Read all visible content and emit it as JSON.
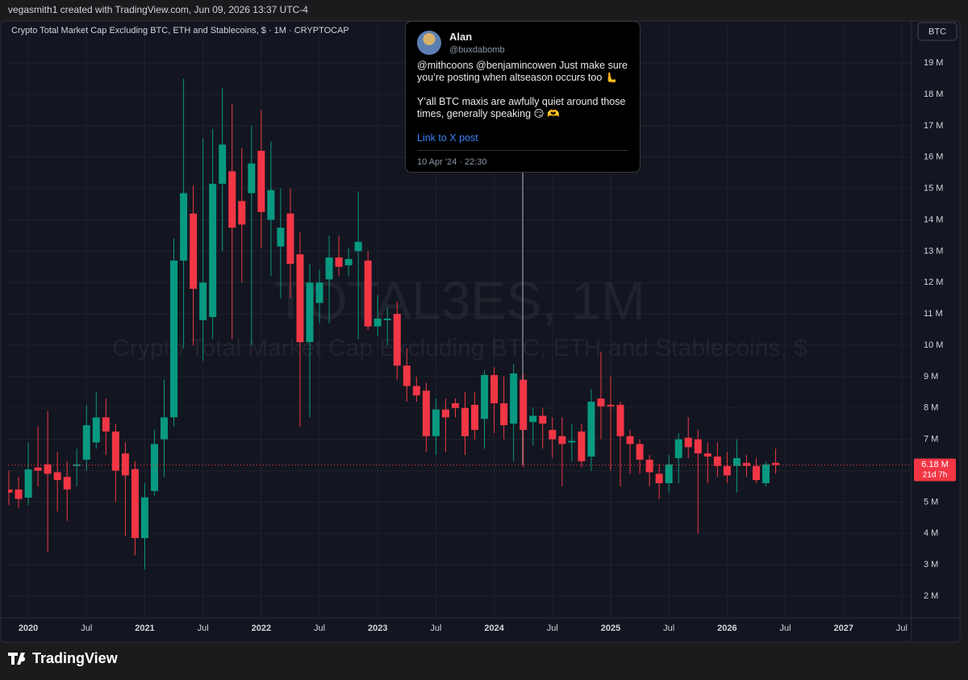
{
  "header": {
    "caption": "vegasmith1 created with TradingView.com, Jun 09, 2026 13:37 UTC-4"
  },
  "chart_data": {
    "type": "candlestick",
    "title": "Crypto Total Market Cap Excluding BTC, ETH and Stablecoins, $ · 1M · CRYPTOCAP",
    "watermark": {
      "symbol": "TOTAL3ES, 1M",
      "description": "Crypto Total Market Cap Excluding BTC, ETH and Stablecoins, $"
    },
    "currency_button": "BTC",
    "up_color": "#089981",
    "down_color": "#f23645",
    "x": [
      "2019-11",
      "2019-12",
      "2020-01",
      "2020-02",
      "2020-03",
      "2020-04",
      "2020-05",
      "2020-06",
      "2020-07",
      "2020-08",
      "2020-09",
      "2020-10",
      "2020-11",
      "2020-12",
      "2021-01",
      "2021-02",
      "2021-03",
      "2021-04",
      "2021-05",
      "2021-06",
      "2021-07",
      "2021-08",
      "2021-09",
      "2021-10",
      "2021-11",
      "2021-12",
      "2022-01",
      "2022-02",
      "2022-03",
      "2022-04",
      "2022-05",
      "2022-06",
      "2022-07",
      "2022-08",
      "2022-09",
      "2022-10",
      "2022-11",
      "2022-12",
      "2023-01",
      "2023-02",
      "2023-03",
      "2023-04",
      "2023-05",
      "2023-06",
      "2023-07",
      "2023-08",
      "2023-09",
      "2023-10",
      "2023-11",
      "2023-12",
      "2024-01",
      "2024-02",
      "2024-03",
      "2024-04",
      "2024-05",
      "2024-06",
      "2024-07",
      "2024-08",
      "2024-09",
      "2024-10",
      "2024-11",
      "2024-12",
      "2025-01",
      "2025-02",
      "2025-03",
      "2025-04",
      "2025-05",
      "2025-06",
      "2025-07",
      "2025-08",
      "2025-09",
      "2025-10",
      "2025-11",
      "2025-12",
      "2026-01",
      "2026-02",
      "2026-03",
      "2026-04",
      "2026-05",
      "2026-06"
    ],
    "open": [
      5.4,
      5.4,
      5.14,
      6.1,
      6.2,
      5.95,
      5.8,
      6.15,
      6.35,
      6.9,
      7.7,
      7.25,
      6.55,
      6.05,
      3.85,
      5.35,
      7.0,
      7.7,
      12.7,
      14.2,
      10.8,
      10.9,
      15.15,
      15.55,
      14.6,
      14.85,
      16.2,
      14.0,
      13.15,
      14.2,
      12.9,
      10.1,
      11.35,
      12.1,
      12.8,
      12.55,
      13.0,
      12.7,
      10.6,
      10.8,
      11.0,
      9.35,
      8.7,
      8.55,
      7.1,
      7.95,
      8.15,
      8.0,
      8.1,
      7.65,
      9.05,
      8.15,
      7.5,
      8.9,
      7.55,
      7.75,
      7.3,
      7.1,
      6.9,
      7.25,
      6.45,
      8.3,
      8.1,
      8.1,
      7.1,
      6.85,
      6.35,
      5.9,
      5.6,
      6.4,
      7.05,
      7.0,
      6.55,
      6.45,
      6.15,
      6.15,
      6.25,
      6.15,
      5.6,
      6.25
    ],
    "high": [
      6.0,
      5.8,
      6.9,
      7.4,
      7.9,
      6.6,
      6.3,
      6.7,
      8.1,
      8.5,
      8.3,
      7.5,
      6.9,
      6.3,
      5.6,
      7.3,
      8.9,
      13.4,
      18.5,
      15.1,
      16.6,
      16.9,
      18.2,
      17.7,
      16.3,
      17.0,
      17.5,
      16.5,
      15.0,
      15.0,
      13.6,
      12.6,
      12.4,
      13.5,
      13.5,
      13.1,
      14.9,
      13.0,
      11.6,
      11.2,
      11.4,
      9.9,
      9.0,
      8.8,
      8.3,
      8.3,
      8.3,
      8.5,
      8.5,
      9.2,
      9.3,
      9.0,
      9.4,
      9.1,
      8.0,
      8.0,
      7.7,
      7.7,
      7.5,
      7.5,
      8.6,
      9.8,
      9.0,
      8.2,
      7.3,
      7.0,
      6.5,
      6.2,
      6.5,
      7.2,
      7.7,
      7.3,
      6.9,
      6.9,
      6.6,
      7.0,
      6.5,
      6.4,
      6.3,
      6.7
    ],
    "low": [
      4.9,
      4.8,
      4.9,
      5.5,
      3.4,
      4.7,
      4.4,
      5.5,
      6.0,
      6.7,
      6.5,
      5.0,
      3.9,
      3.3,
      2.85,
      5.2,
      5.8,
      7.4,
      9.9,
      10.0,
      9.5,
      10.2,
      13.0,
      10.2,
      12.0,
      10.0,
      13.1,
      12.2,
      11.5,
      11.5,
      7.4,
      7.7,
      10.7,
      10.7,
      12.2,
      12.2,
      10.2,
      10.5,
      10.3,
      10.0,
      8.9,
      8.2,
      8.2,
      6.6,
      6.5,
      6.6,
      7.7,
      6.5,
      7.0,
      6.7,
      7.2,
      7.0,
      6.3,
      6.1,
      6.8,
      6.7,
      6.4,
      5.5,
      6.3,
      6.1,
      6.0,
      7.0,
      6.0,
      5.5,
      5.9,
      5.9,
      5.5,
      5.1,
      5.3,
      5.6,
      6.4,
      4.0,
      5.6,
      5.8,
      5.6,
      5.3,
      5.8,
      5.6,
      5.5,
      5.9
    ],
    "close": [
      5.3,
      5.1,
      6.04,
      6.0,
      5.9,
      5.7,
      5.4,
      6.2,
      7.45,
      7.7,
      7.25,
      6.0,
      5.85,
      3.85,
      5.15,
      6.85,
      7.7,
      12.7,
      14.85,
      11.8,
      12.0,
      15.15,
      16.4,
      13.75,
      13.85,
      15.8,
      14.25,
      14.95,
      13.75,
      12.6,
      10.1,
      12.0,
      12.0,
      12.8,
      12.5,
      12.75,
      13.3,
      10.6,
      10.85,
      10.85,
      9.35,
      8.7,
      8.4,
      7.1,
      7.95,
      7.7,
      8.0,
      7.1,
      7.3,
      9.05,
      8.15,
      7.45,
      9.1,
      7.3,
      7.75,
      7.5,
      7.0,
      6.85,
      6.95,
      6.3,
      8.2,
      8.05,
      8.05,
      7.1,
      6.85,
      6.35,
      5.95,
      5.6,
      6.2,
      7.0,
      6.75,
      6.55,
      6.45,
      6.15,
      5.85,
      6.4,
      6.15,
      5.7,
      6.2,
      6.18
    ],
    "last_price": {
      "value": 6.18,
      "label": "6.18 M",
      "countdown": "21d 7h"
    },
    "xlim": [
      "2019-11",
      "2027-08"
    ],
    "xticks": [
      {
        "value": "2020-01",
        "label": "2020"
      },
      {
        "value": "2020-07",
        "label": "Jul"
      },
      {
        "value": "2021-01",
        "label": "2021"
      },
      {
        "value": "2021-07",
        "label": "Jul"
      },
      {
        "value": "2022-01",
        "label": "2022"
      },
      {
        "value": "2022-07",
        "label": "Jul"
      },
      {
        "value": "2023-01",
        "label": "2023"
      },
      {
        "value": "2023-07",
        "label": "Jul"
      },
      {
        "value": "2024-01",
        "label": "2024"
      },
      {
        "value": "2024-07",
        "label": "Jul"
      },
      {
        "value": "2025-01",
        "label": "2025"
      },
      {
        "value": "2025-07",
        "label": "Jul"
      },
      {
        "value": "2026-01",
        "label": "2026"
      },
      {
        "value": "2026-07",
        "label": "Jul"
      },
      {
        "value": "2027-01",
        "label": "2027"
      },
      {
        "value": "2027-07",
        "label": "Jul"
      }
    ],
    "ylim": [
      1.33,
      20.24
    ],
    "yticks": [
      {
        "value": 2,
        "label": "2 M"
      },
      {
        "value": 3,
        "label": "3 M"
      },
      {
        "value": 4,
        "label": "4 M"
      },
      {
        "value": 5,
        "label": "5 M"
      },
      {
        "value": 6,
        "label": "6 M"
      },
      {
        "value": 7,
        "label": "7 M"
      },
      {
        "value": 8,
        "label": "8 M"
      },
      {
        "value": 9,
        "label": "9 M"
      },
      {
        "value": 10,
        "label": "10 M"
      },
      {
        "value": 11,
        "label": "11 M"
      },
      {
        "value": 12,
        "label": "12 M"
      },
      {
        "value": 13,
        "label": "13 M"
      },
      {
        "value": 14,
        "label": "14 M"
      },
      {
        "value": 15,
        "label": "15 M"
      },
      {
        "value": 16,
        "label": "16 M"
      },
      {
        "value": 17,
        "label": "17 M"
      },
      {
        "value": 18,
        "label": "18 M"
      },
      {
        "value": 19,
        "label": "19 M"
      }
    ],
    "grid": true
  },
  "tweet": {
    "name": "Alan",
    "handle": "@buxdabomb",
    "paragraphs": [
      "@mithcoons @benjamincowen Just make sure you’re posting when altseason occurs too 🫷",
      "Y’all BTC maxis are awfully quiet around those times, generally speaking 😏 🫶"
    ],
    "link": "Link to X post",
    "date": "10 Apr '24 · 22:30"
  },
  "footer": {
    "brand": "TradingView"
  }
}
